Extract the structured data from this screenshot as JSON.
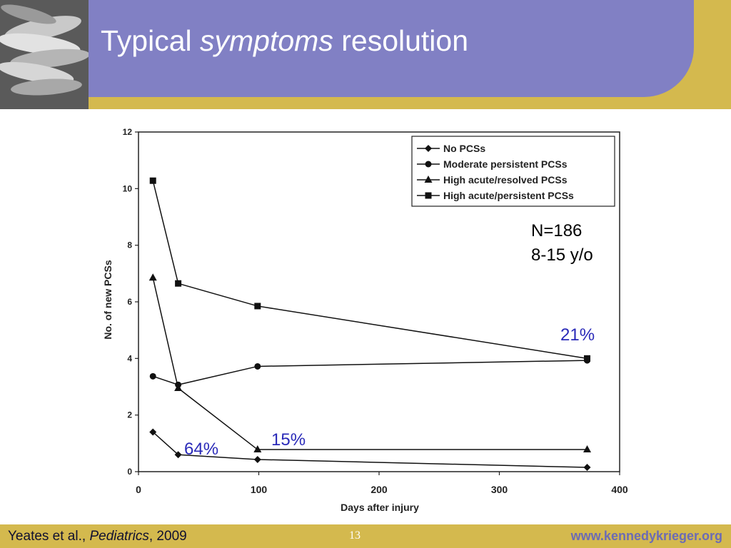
{
  "slide": {
    "title_part1": "Typical",
    "title_emph": "symptoms",
    "title_part2": "resolution"
  },
  "footer": {
    "citation_authors": "Yeates et al.,",
    "citation_journal": "Pediatrics",
    "citation_year": ", 2009",
    "page_number": "13",
    "url": "www.kennedykrieger.org"
  },
  "colors": {
    "header_band": "#8180c4",
    "background_bar": "#d4b94e",
    "percent_annotation": "#2a2ab8"
  },
  "chart_data": {
    "type": "line",
    "xlabel": "Days after injury",
    "ylabel": "No. of new PCSs",
    "xlim": [
      0,
      400
    ],
    "ylim": [
      0,
      12
    ],
    "xticks": [
      0,
      100,
      200,
      300,
      400
    ],
    "yticks": [
      0,
      2,
      4,
      6,
      8,
      10,
      12
    ],
    "grid": false,
    "legend_position": "top-right",
    "series": [
      {
        "name": "No PCSs",
        "marker": "diamond",
        "x": [
          12,
          33,
          99,
          373
        ],
        "y": [
          1.4,
          0.6,
          0.43,
          0.15
        ]
      },
      {
        "name": "Moderate persistent PCSs",
        "marker": "circle",
        "x": [
          12,
          33,
          99,
          373
        ],
        "y": [
          3.37,
          3.07,
          3.72,
          3.93
        ]
      },
      {
        "name": "High acute/resolved PCSs",
        "marker": "triangle",
        "x": [
          12,
          33,
          99,
          373
        ],
        "y": [
          6.85,
          2.95,
          0.78,
          0.78
        ]
      },
      {
        "name": "High acute/persistent PCSs",
        "marker": "square",
        "x": [
          12,
          33,
          99,
          373
        ],
        "y": [
          10.28,
          6.65,
          5.85,
          4.0
        ]
      }
    ],
    "annotations": {
      "sample_size": "N=186",
      "age_range": "8-15 y/o",
      "pct_64": "64%",
      "pct_15": "15%",
      "pct_21": "21%"
    }
  }
}
